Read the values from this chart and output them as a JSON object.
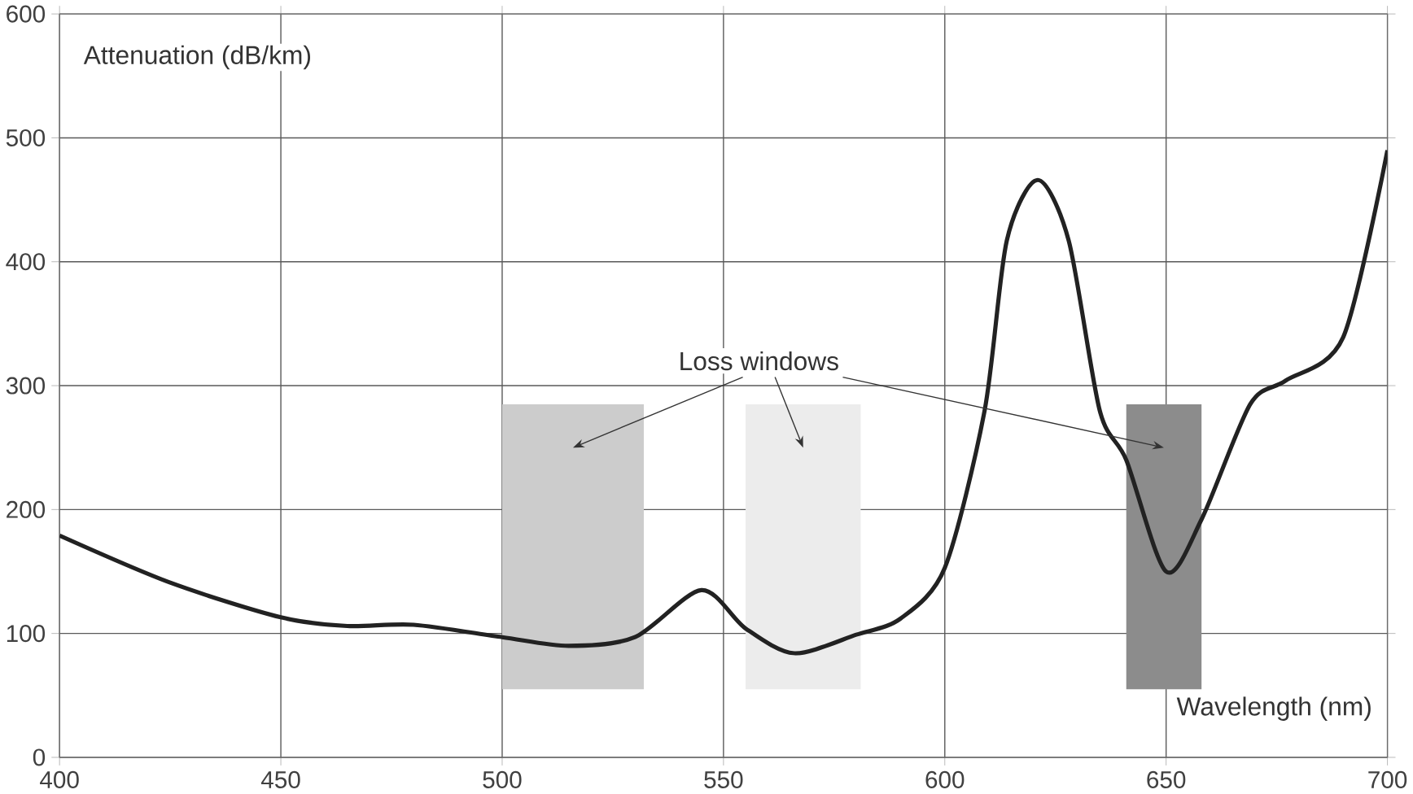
{
  "chart_data": {
    "type": "line",
    "xlabel": "Wavelength (nm)",
    "ylabel": "Attenuation (dB/km)",
    "x": [
      400,
      425,
      450,
      465,
      480,
      500,
      515,
      530,
      545,
      555,
      566,
      580,
      590,
      600,
      609,
      614,
      621,
      628,
      635,
      641,
      650,
      658,
      669,
      677,
      690,
      700
    ],
    "series": [
      {
        "color": "#222222",
        "values": [
          179,
          141,
          113,
          106,
          107,
          97,
          90,
          97,
          135,
          104,
          84,
          99,
          112,
          153,
          280,
          417,
          466,
          417,
          280,
          240,
          150,
          192,
          285,
          304,
          339,
          490
        ]
      }
    ],
    "xlim": [
      400,
      700
    ],
    "ylim": [
      0,
      600
    ],
    "xticks": [
      400,
      450,
      500,
      550,
      600,
      650,
      700
    ],
    "yticks": [
      0,
      100,
      200,
      300,
      400,
      500,
      600
    ],
    "grid": true,
    "line_style": "solid",
    "marker": "none",
    "bands": [
      {
        "axis": "x",
        "from": 500,
        "to": 532,
        "color": "#cccccc"
      },
      {
        "axis": "x",
        "from": 555,
        "to": 581,
        "color": "#ececec"
      },
      {
        "axis": "x",
        "from": 641,
        "to": 658,
        "color": "#8c8c8c"
      }
    ],
    "annotations": [
      "Loss windows"
    ]
  }
}
